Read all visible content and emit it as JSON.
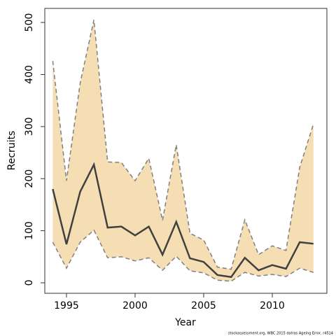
{
  "chart_data": {
    "type": "line",
    "xlabel": "Year",
    "ylabel": "Recruits",
    "caption": "stockassessment.org, WBC 2015 datras Ageing Error, r4514",
    "x": [
      1994,
      1995,
      1996,
      1997,
      1998,
      1999,
      2000,
      2001,
      2002,
      2003,
      2004,
      2005,
      2006,
      2007,
      2008,
      2009,
      2010,
      2011,
      2012,
      2013
    ],
    "values": [
      180,
      74,
      175,
      227,
      106,
      108,
      91,
      108,
      54,
      117,
      47,
      40,
      15,
      11,
      48,
      24,
      34,
      27,
      78,
      75
    ],
    "upper": [
      426,
      196,
      384,
      505,
      232,
      231,
      196,
      239,
      120,
      265,
      95,
      82,
      30,
      26,
      121,
      54,
      71,
      62,
      222,
      305
    ],
    "lower": [
      78,
      28,
      78,
      101,
      48,
      50,
      42,
      48,
      24,
      51,
      23,
      19,
      5,
      3,
      20,
      13,
      16,
      12,
      28,
      20
    ],
    "color": "#404040",
    "band_color": "#f5deb3",
    "bound_color": "#808080",
    "xlim": [
      1993.42,
      2013.98
    ],
    "ylim": [
      -20.2,
      527
    ],
    "xticks": [
      1995,
      2000,
      2005,
      2010
    ],
    "yticks": [
      0,
      100,
      200,
      300,
      400,
      500
    ]
  }
}
